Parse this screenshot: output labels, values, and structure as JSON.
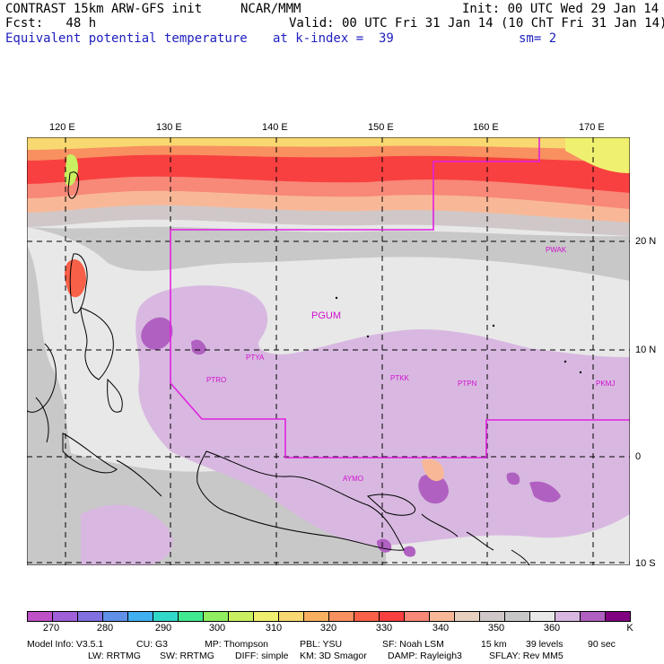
{
  "header": {
    "line1_left": "CONTRAST 15km ARW-GFS init",
    "line1_mid": "NCAR/MMM",
    "line1_right": "Init: 00 UTC Wed 29 Jan 14",
    "line2_left": "Fcst:   48 h",
    "line2_right": "Valid: 00 UTC Fri 31 Jan 14 (10 ChT Fri 31 Jan 14)",
    "field_name": "Equivalent potential temperature",
    "level": "at k-index =  39",
    "smoothing": "sm= 2"
  },
  "map": {
    "lon_labels": [
      "120 E",
      "130 E",
      "140 E",
      "150 E",
      "160 E",
      "170 E"
    ],
    "lat_labels": [
      "20 N",
      "10 N",
      "0",
      "10 S"
    ],
    "stations": [
      "PWAK",
      "PGUM",
      "PTYA",
      "PTRO",
      "PTKK",
      "PTPN",
      "PKMJ",
      "AYMO"
    ],
    "boundary_color": "#e020e0"
  },
  "colorbar": {
    "colors": [
      "#c050c8",
      "#a060d8",
      "#8070e0",
      "#6090e8",
      "#40b0f0",
      "#30d8c8",
      "#40e890",
      "#90ee60",
      "#c8f060",
      "#f0f070",
      "#f8d870",
      "#f8b060",
      "#f89060",
      "#f86048",
      "#f84040",
      "#f88878",
      "#f8b898",
      "#e8d0c0",
      "#d0c8c8",
      "#c8c8c8",
      "#e8e8e8",
      "#d8b8e0",
      "#b060c0",
      "#800080"
    ],
    "labels": [
      "270",
      "280",
      "290",
      "300",
      "310",
      "320",
      "330",
      "340",
      "350",
      "360",
      "K"
    ]
  },
  "footer": {
    "line1": [
      "Model Info: V3.5.1",
      "CU: G3",
      "MP: Thompson",
      "PBL: YSU",
      "SF: Noah LSM",
      "15 km",
      "39 levels",
      "90 sec"
    ],
    "line2": [
      "LW: RRTMG",
      "SW: RRTMG",
      "DIFF: simple",
      "KM: 3D Smagor",
      "DAMP: Rayleigh3",
      "SFLAY: Rev MM5"
    ]
  }
}
